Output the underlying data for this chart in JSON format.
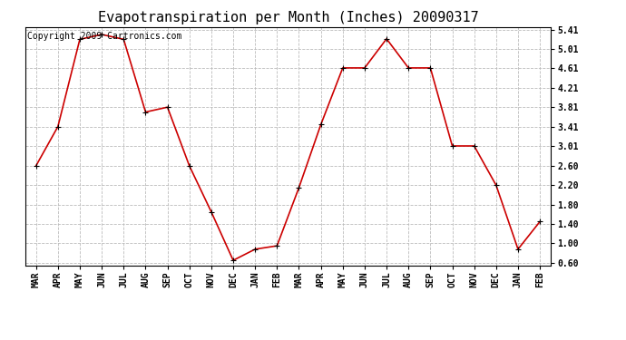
{
  "title": "Evapotranspiration per Month (Inches) 20090317",
  "copyright_text": "Copyright 2009 Cartronics.com",
  "months": [
    "MAR",
    "APR",
    "MAY",
    "JUN",
    "JUL",
    "AUG",
    "SEP",
    "OCT",
    "NOV",
    "DEC",
    "JAN",
    "FEB",
    "MAR",
    "APR",
    "MAY",
    "JUN",
    "JUL",
    "AUG",
    "SEP",
    "OCT",
    "NOV",
    "DEC",
    "JAN",
    "FEB"
  ],
  "values": [
    2.6,
    3.41,
    5.21,
    5.31,
    5.21,
    3.71,
    3.81,
    2.6,
    1.65,
    0.65,
    0.88,
    0.95,
    2.15,
    3.45,
    4.62,
    4.62,
    5.22,
    4.62,
    4.62,
    3.01,
    3.01,
    2.2,
    0.88,
    1.45
  ],
  "line_color": "#cc0000",
  "marker": "+",
  "marker_size": 5,
  "line_width": 1.2,
  "yticks": [
    0.6,
    1.0,
    1.4,
    1.8,
    2.2,
    2.6,
    3.01,
    3.41,
    3.81,
    4.21,
    4.61,
    5.01,
    5.41
  ],
  "ylim": [
    0.55,
    5.46
  ],
  "bg_color": "#ffffff",
  "plot_bg_color": "#ffffff",
  "grid_color": "#bbbbbb",
  "title_fontsize": 11,
  "copyright_fontsize": 7,
  "tick_fontsize": 7
}
